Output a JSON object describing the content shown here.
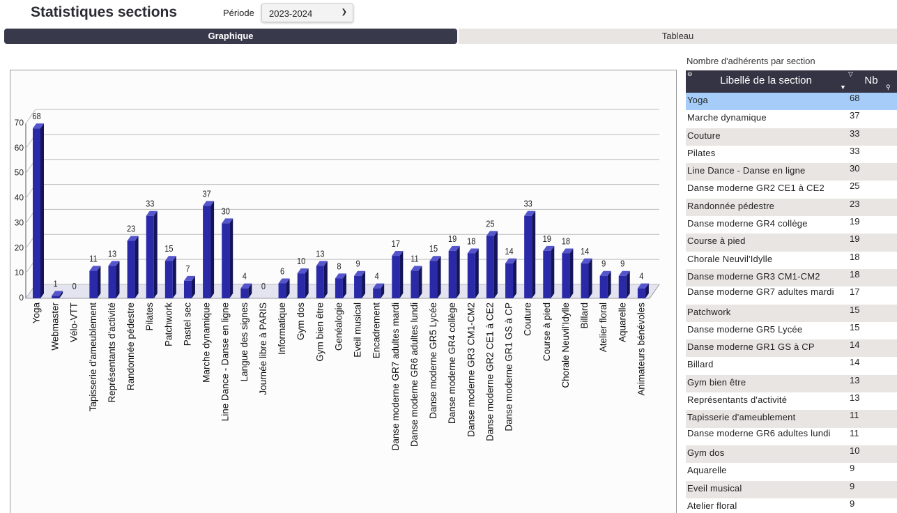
{
  "header": {
    "title": "Statistiques sections",
    "period_label": "Période",
    "period_value": "2023-2024"
  },
  "tabs": [
    {
      "label": "Graphique"
    },
    {
      "label": "Tableau"
    }
  ],
  "table": {
    "caption": "Nombre d'adhérents par section",
    "col_label": "Libellé de la section",
    "col_nb": "Nb",
    "rows": [
      {
        "label": "Yoga",
        "nb": "68"
      },
      {
        "label": "Marche dynamique",
        "nb": "37"
      },
      {
        "label": "Couture",
        "nb": "33"
      },
      {
        "label": "Pilates",
        "nb": "33"
      },
      {
        "label": "Line Dance - Danse en ligne",
        "nb": "30"
      },
      {
        "label": "Danse moderne GR2 CE1 à CE2",
        "nb": "25"
      },
      {
        "label": "Randonnée pédestre",
        "nb": "23"
      },
      {
        "label": "Danse moderne GR4 collège",
        "nb": "19"
      },
      {
        "label": "Course à pied",
        "nb": "19"
      },
      {
        "label": "Chorale Neuvil'Idylle",
        "nb": "18"
      },
      {
        "label": "Danse moderne GR3 CM1-CM2",
        "nb": "18"
      },
      {
        "label": "Danse moderne GR7 adultes mardi",
        "nb": "17"
      },
      {
        "label": "Patchwork",
        "nb": "15"
      },
      {
        "label": "Danse moderne GR5 Lycée",
        "nb": "15"
      },
      {
        "label": "Danse moderne GR1 GS à CP",
        "nb": "14"
      },
      {
        "label": "Billard",
        "nb": "14"
      },
      {
        "label": "Gym bien être",
        "nb": "13"
      },
      {
        "label": "Représentants d'activité",
        "nb": "13"
      },
      {
        "label": "Tapisserie d'ameublement",
        "nb": "11"
      },
      {
        "label": "Danse moderne GR6 adultes lundi",
        "nb": "11"
      },
      {
        "label": "Gym dos",
        "nb": "10"
      },
      {
        "label": "Aquarelle",
        "nb": "9"
      },
      {
        "label": "Eveil musical",
        "nb": "9"
      },
      {
        "label": "Atelier floral",
        "nb": "9"
      }
    ]
  },
  "chart_data": {
    "type": "bar",
    "categories": [
      "Yoga",
      "Webmaster",
      "Vélo-VTT",
      "Tapisserie d'ameublement",
      "Représentants d'activité",
      "Randonnée pédestre",
      "Pilates",
      "Patchwork",
      "Pastel sec",
      "Marche dynamique",
      "Line Dance - Danse en ligne",
      "Langue des signes",
      "Journée libre  à PARIS",
      "Informatique",
      "Gym dos",
      "Gym bien être",
      "Genéalogie",
      "Eveil musical",
      "Encadrement",
      "Danse moderne GR7 adultes mardi",
      "Danse moderne GR6 adultes lundi",
      "Danse moderne GR5 Lycée",
      "Danse moderne GR4 collège",
      "Danse moderne GR3 CM1-CM2",
      "Danse moderne GR2 CE1 à CE2",
      "Danse moderne GR1 GS à CP",
      "Couture",
      "Course à pied",
      "Chorale Neuvil'Idylle",
      "Billard",
      "Atelier floral",
      "Aquarelle",
      "Animateurs bénévoles"
    ],
    "values": [
      68,
      1,
      0,
      11,
      13,
      23,
      33,
      15,
      7,
      37,
      30,
      4,
      0,
      6,
      10,
      13,
      8,
      9,
      4,
      17,
      11,
      15,
      19,
      18,
      25,
      14,
      33,
      19,
      18,
      14,
      9,
      9,
      4
    ],
    "ylim": [
      0,
      70
    ],
    "yticks": [
      0,
      10,
      20,
      30,
      40,
      50,
      60,
      70
    ],
    "grid": true,
    "colors": {
      "front": "#2a2aa8",
      "side": "#14145a",
      "top": "#5656cc"
    }
  }
}
